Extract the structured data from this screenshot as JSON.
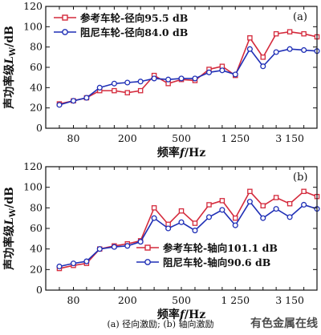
{
  "caption": "(a) 径向激励; (b) 轴向激励",
  "watermark": "有色金属在线",
  "colors": {
    "reference": "#d42a3c",
    "damped": "#1f2fb6",
    "axis": "#111111"
  },
  "chart_data": [
    {
      "type": "line",
      "panel_label": "(a)",
      "xlabel": "频率f/Hz",
      "ylabel": "声功率级Lw/dB",
      "ylabel_parts": {
        "main": "声功率级",
        "symbol": "L",
        "subscript": "W",
        "unit": "/dB"
      },
      "xlabel_parts": {
        "main": "频率",
        "symbol": "f",
        "unit": "/Hz"
      },
      "ylim": [
        0,
        120
      ],
      "yticks": [
        0,
        20,
        40,
        60,
        80,
        100,
        120
      ],
      "x_scale": "log",
      "xlim": [
        50,
        5000
      ],
      "xtick_labels": [
        {
          "value": 80,
          "label": "80"
        },
        {
          "value": 200,
          "label": "200"
        },
        {
          "value": 500,
          "label": "500"
        },
        {
          "value": 1250,
          "label": "1 250"
        },
        {
          "value": 3150,
          "label": "3 150"
        }
      ],
      "x": [
        63,
        80,
        100,
        125,
        160,
        200,
        250,
        315,
        400,
        500,
        630,
        800,
        1000,
        1250,
        1600,
        2000,
        2500,
        3150,
        4000,
        5000
      ],
      "legend_position": "top-left",
      "series": [
        {
          "name": "参考车轮-径向95.5 dB",
          "color": "#d42a3c",
          "marker": "square",
          "values": [
            24,
            27,
            30,
            37,
            37,
            35,
            37,
            52,
            44,
            48,
            47,
            58,
            61,
            52,
            89,
            70,
            93,
            95,
            93,
            90
          ]
        },
        {
          "name": "阻尼车轮-径向84.0 dB",
          "color": "#1f2fb6",
          "marker": "circle",
          "values": [
            23,
            27,
            30,
            40,
            44,
            45,
            46,
            49,
            48,
            49,
            49,
            55,
            57,
            53,
            78,
            61,
            75,
            78,
            77,
            76
          ]
        }
      ]
    },
    {
      "type": "line",
      "panel_label": "(b)",
      "xlabel": "频率f/Hz",
      "ylabel": "声功率级Lw/dB",
      "ylabel_parts": {
        "main": "声功率级",
        "symbol": "L",
        "subscript": "W",
        "unit": "/dB"
      },
      "xlabel_parts": {
        "main": "频率",
        "symbol": "f",
        "unit": "/Hz"
      },
      "ylim": [
        0,
        120
      ],
      "yticks": [
        0,
        20,
        40,
        60,
        80,
        100,
        120
      ],
      "x_scale": "log",
      "xlim": [
        50,
        5000
      ],
      "xtick_labels": [
        {
          "value": 80,
          "label": "80"
        },
        {
          "value": 200,
          "label": "200"
        },
        {
          "value": 500,
          "label": "500"
        },
        {
          "value": 1250,
          "label": "1 250"
        },
        {
          "value": 3150,
          "label": "3 150"
        }
      ],
      "x": [
        63,
        80,
        100,
        125,
        160,
        200,
        250,
        315,
        400,
        500,
        630,
        800,
        1000,
        1250,
        1600,
        2000,
        2500,
        3150,
        4000,
        5000
      ],
      "legend_position": "bottom-center",
      "series": [
        {
          "name": "参考车轮-轴向101.1 dB",
          "color": "#d42a3c",
          "marker": "square",
          "values": [
            21,
            24,
            26,
            40,
            43,
            45,
            48,
            80,
            64,
            77,
            65,
            83,
            87,
            70,
            96,
            82,
            90,
            84,
            96,
            91
          ]
        },
        {
          "name": "阻尼车轮-轴向90.6 dB",
          "color": "#1f2fb6",
          "marker": "circle",
          "values": [
            23,
            26,
            28,
            40,
            42,
            43,
            47,
            70,
            60,
            66,
            58,
            71,
            78,
            63,
            86,
            70,
            79,
            71,
            83,
            79
          ]
        }
      ]
    }
  ]
}
